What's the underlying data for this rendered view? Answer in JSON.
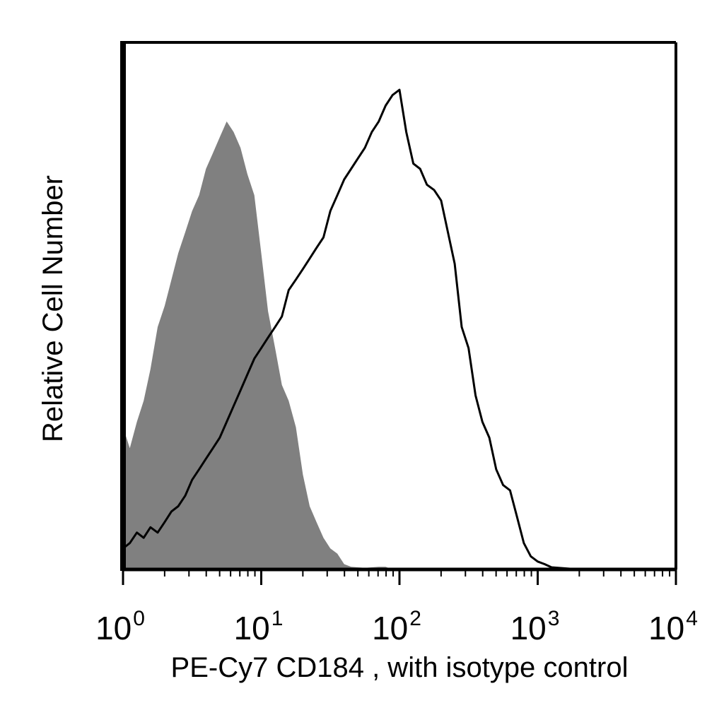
{
  "chart_data": {
    "type": "area",
    "title": "",
    "xlabel": "PE-Cy7 CD184 , with isotype control",
    "ylabel": "Relative Cell Number",
    "xscale": "log",
    "xlim": [
      1,
      10000
    ],
    "ylim": [
      0,
      100
    ],
    "x_ticks": [
      {
        "value": 1,
        "base": "10",
        "exp": "0"
      },
      {
        "value": 10,
        "base": "10",
        "exp": "1"
      },
      {
        "value": 100,
        "base": "10",
        "exp": "2"
      },
      {
        "value": 1000,
        "base": "10",
        "exp": "3"
      },
      {
        "value": 10000,
        "base": "10",
        "exp": "4"
      }
    ],
    "grid": false,
    "legend": "none",
    "series": [
      {
        "style": "filled",
        "color": "#808080",
        "points": [
          [
            1.0,
            27
          ],
          [
            1.12,
            23
          ],
          [
            1.26,
            28
          ],
          [
            1.41,
            32
          ],
          [
            1.58,
            38
          ],
          [
            1.78,
            46
          ],
          [
            2.0,
            50
          ],
          [
            2.24,
            55
          ],
          [
            2.51,
            60
          ],
          [
            2.82,
            64
          ],
          [
            3.16,
            68
          ],
          [
            3.55,
            71
          ],
          [
            3.98,
            76
          ],
          [
            4.47,
            79
          ],
          [
            5.01,
            82
          ],
          [
            5.62,
            85
          ],
          [
            6.31,
            83
          ],
          [
            7.08,
            80
          ],
          [
            7.94,
            75
          ],
          [
            8.91,
            71
          ],
          [
            10.0,
            60
          ],
          [
            11.2,
            49
          ],
          [
            12.6,
            42
          ],
          [
            14.1,
            35
          ],
          [
            15.8,
            32
          ],
          [
            17.8,
            27
          ],
          [
            20.0,
            18
          ],
          [
            22.4,
            12
          ],
          [
            25.1,
            9
          ],
          [
            28.2,
            6
          ],
          [
            31.6,
            4
          ],
          [
            35.5,
            3
          ],
          [
            39.8,
            1
          ],
          [
            44.7,
            0.5
          ],
          [
            56.2,
            0.3
          ],
          [
            70.8,
            0.5
          ],
          [
            79.4,
            0.5
          ],
          [
            89.1,
            0
          ]
        ]
      },
      {
        "style": "outline",
        "color": "#000000",
        "points": [
          [
            1.0,
            4
          ],
          [
            1.12,
            5
          ],
          [
            1.26,
            7
          ],
          [
            1.41,
            6
          ],
          [
            1.58,
            8
          ],
          [
            1.78,
            7
          ],
          [
            2.0,
            9
          ],
          [
            2.24,
            11
          ],
          [
            2.51,
            12
          ],
          [
            2.82,
            14
          ],
          [
            3.16,
            17
          ],
          [
            3.55,
            19
          ],
          [
            3.98,
            21
          ],
          [
            4.47,
            23
          ],
          [
            5.01,
            25
          ],
          [
            5.62,
            28
          ],
          [
            6.31,
            31
          ],
          [
            7.08,
            34
          ],
          [
            7.94,
            37
          ],
          [
            8.91,
            40
          ],
          [
            10.0,
            42
          ],
          [
            11.2,
            44
          ],
          [
            12.6,
            46
          ],
          [
            14.1,
            48
          ],
          [
            15.8,
            53
          ],
          [
            17.8,
            55
          ],
          [
            20.0,
            57
          ],
          [
            22.4,
            59
          ],
          [
            25.1,
            61
          ],
          [
            28.2,
            63
          ],
          [
            31.6,
            68
          ],
          [
            35.5,
            71
          ],
          [
            39.8,
            74
          ],
          [
            44.7,
            76
          ],
          [
            50.1,
            78
          ],
          [
            56.2,
            80
          ],
          [
            63.1,
            83
          ],
          [
            70.8,
            85
          ],
          [
            79.4,
            88
          ],
          [
            89.1,
            90
          ],
          [
            100,
            91
          ],
          [
            112,
            83
          ],
          [
            126,
            77
          ],
          [
            141,
            76
          ],
          [
            158,
            73
          ],
          [
            178,
            72
          ],
          [
            200,
            70
          ],
          [
            224,
            64
          ],
          [
            251,
            58
          ],
          [
            282,
            46
          ],
          [
            316,
            42
          ],
          [
            355,
            33
          ],
          [
            398,
            28
          ],
          [
            447,
            25
          ],
          [
            501,
            19
          ],
          [
            562,
            16
          ],
          [
            631,
            15
          ],
          [
            708,
            10
          ],
          [
            794,
            5
          ],
          [
            891,
            2.5
          ],
          [
            1000,
            1.5
          ],
          [
            1122,
            1
          ],
          [
            1259,
            0.4
          ],
          [
            1585,
            0.2
          ],
          [
            2000,
            0
          ]
        ]
      }
    ]
  }
}
